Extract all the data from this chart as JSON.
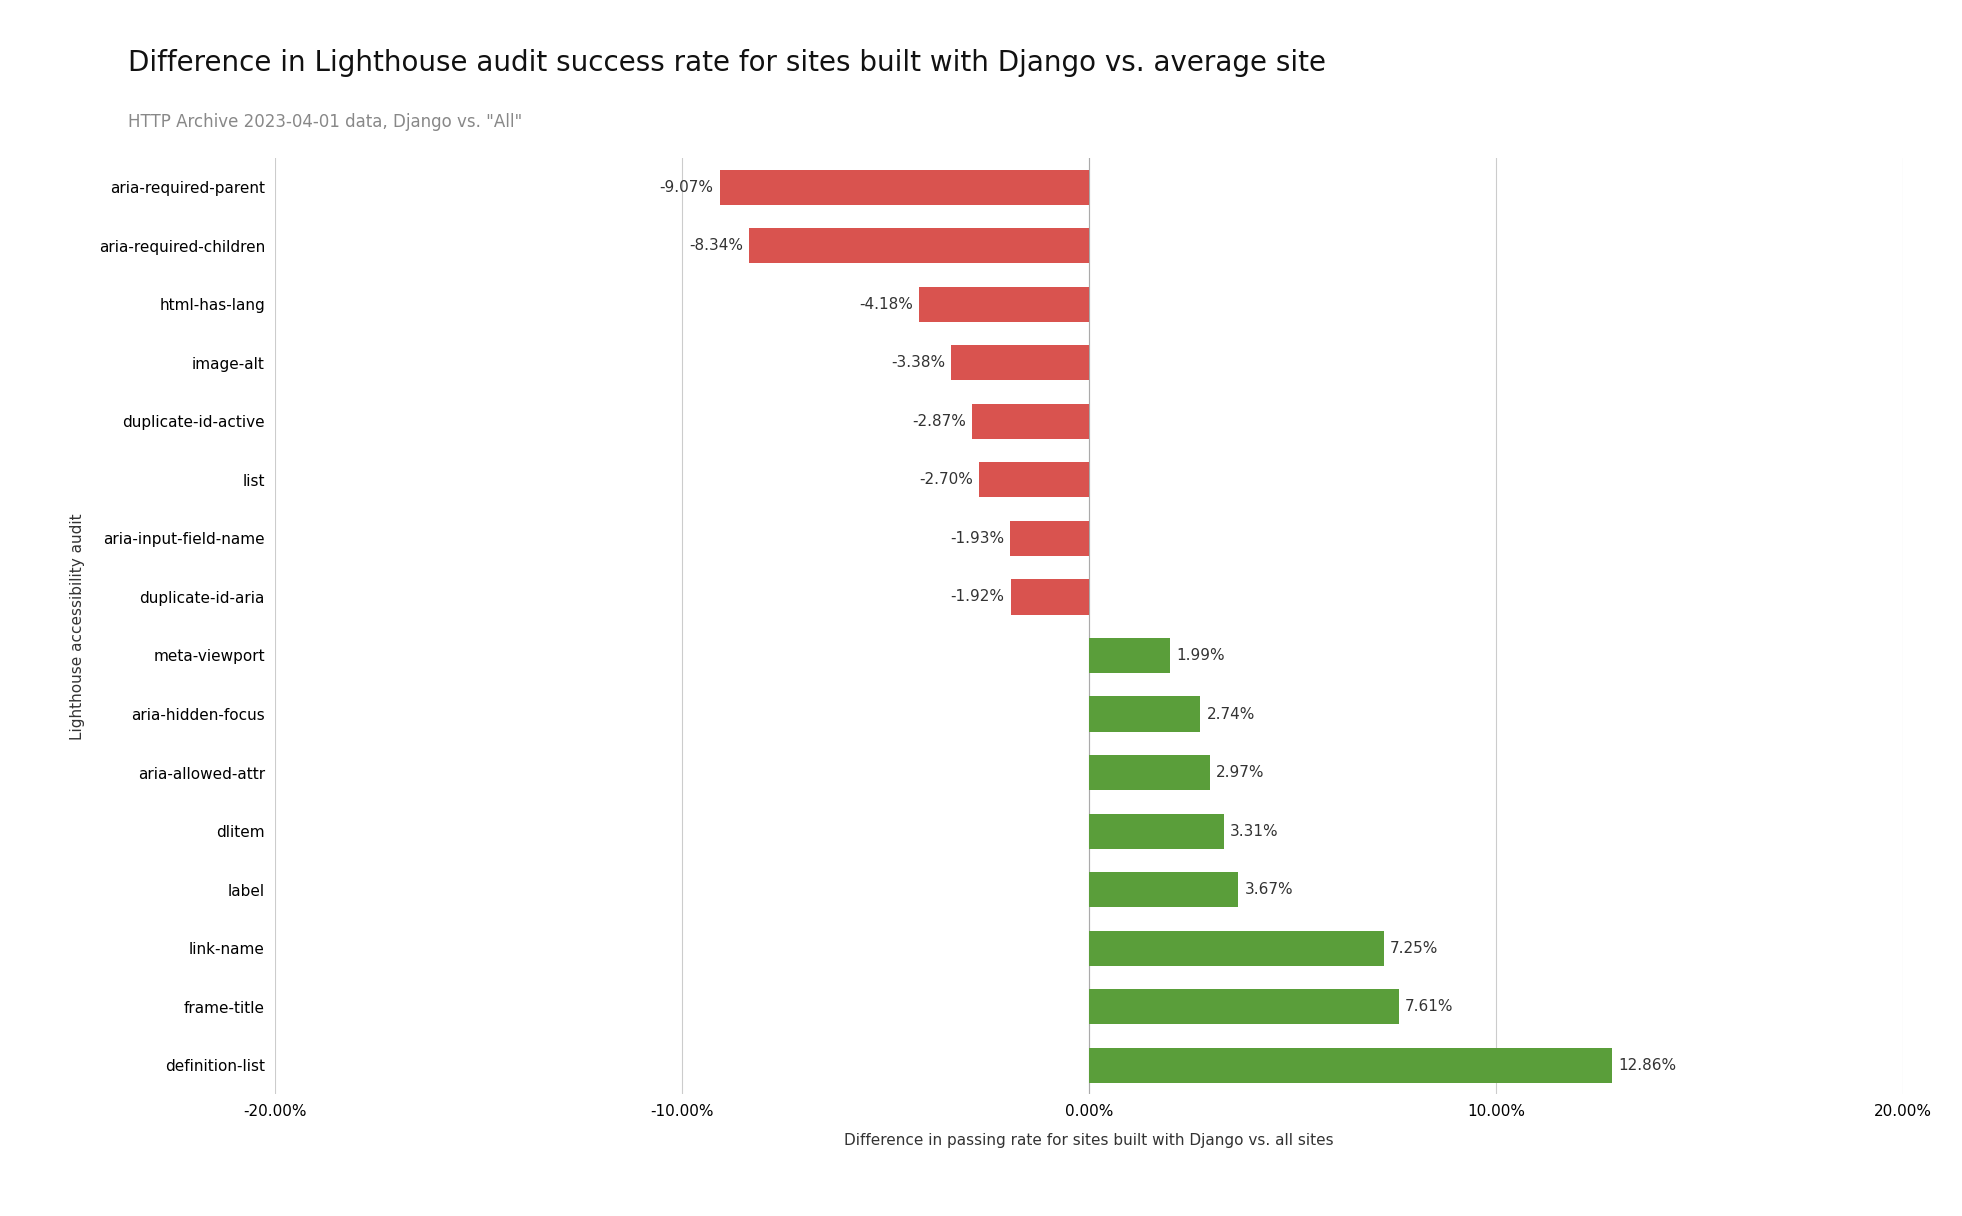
{
  "title": "Difference in Lighthouse audit success rate for sites built with Django vs. average site",
  "subtitle": "HTTP Archive 2023-04-01 data, Django vs. \"All\"",
  "xlabel": "Difference in passing rate for sites built with Django vs. all sites",
  "ylabel": "Lighthouse accessibility audit",
  "categories": [
    "definition-list",
    "frame-title",
    "link-name",
    "label",
    "dlitem",
    "aria-allowed-attr",
    "aria-hidden-focus",
    "meta-viewport",
    "duplicate-id-aria",
    "aria-input-field-name",
    "list",
    "duplicate-id-active",
    "image-alt",
    "html-has-lang",
    "aria-required-children",
    "aria-required-parent"
  ],
  "values": [
    12.86,
    7.61,
    7.25,
    3.67,
    3.31,
    2.97,
    2.74,
    1.99,
    -1.92,
    -1.93,
    -2.7,
    -2.87,
    -3.38,
    -4.18,
    -8.34,
    -9.07
  ],
  "negative_color": "#d9534f",
  "positive_color": "#5a9e3a",
  "xlim": [
    -20,
    20
  ],
  "xticks": [
    -20,
    -10,
    0,
    10,
    20
  ],
  "xtick_labels": [
    "-20.00%",
    "-10.00%",
    "0.00%",
    "10.00%",
    "20.00%"
  ],
  "background_color": "#ffffff",
  "title_fontsize": 20,
  "subtitle_fontsize": 12,
  "label_fontsize": 11,
  "tick_fontsize": 11,
  "bar_height": 0.6,
  "grid_color": "#cccccc",
  "vline_color": "#aaaaaa"
}
